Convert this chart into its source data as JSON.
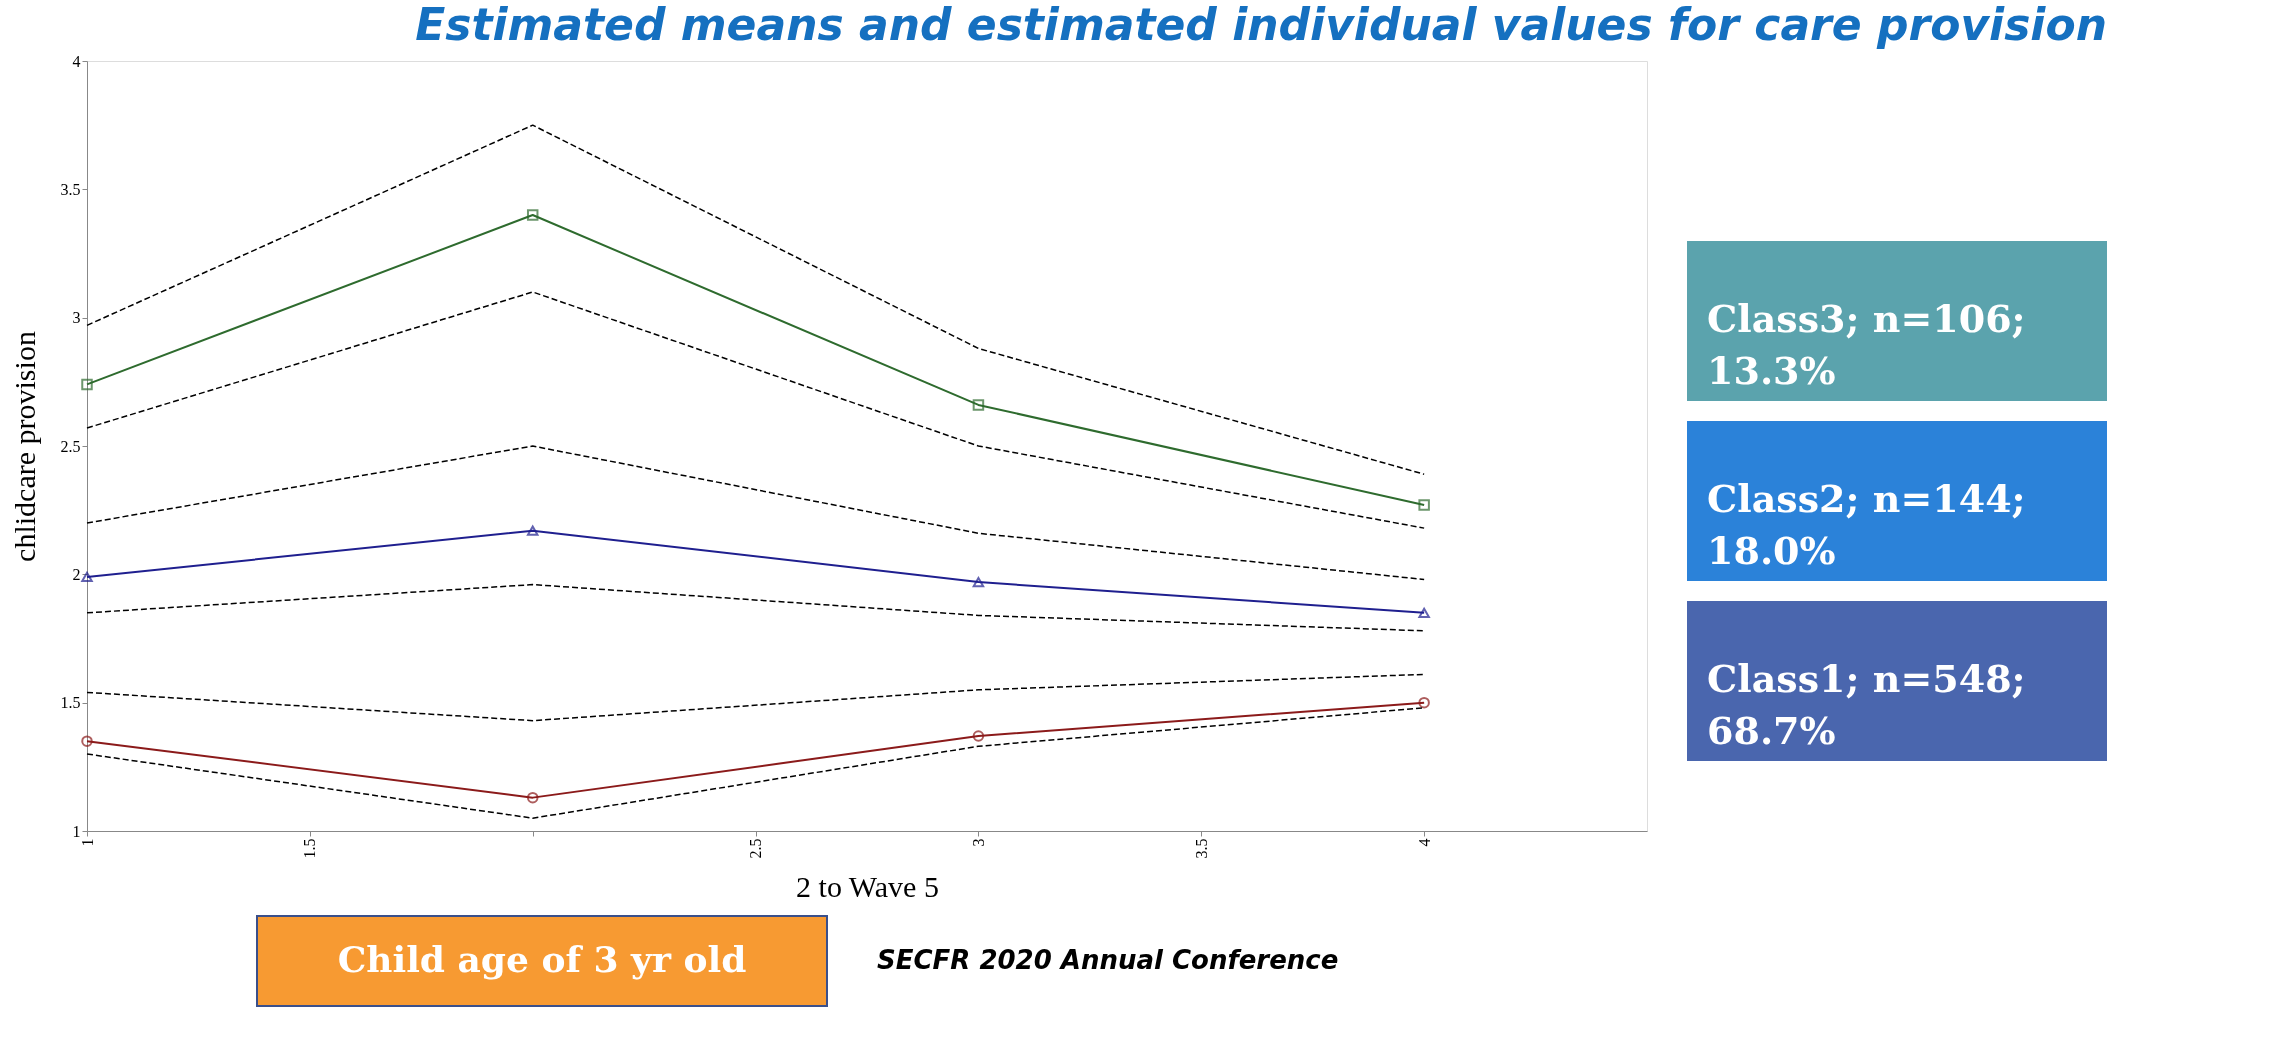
{
  "chart_data": {
    "type": "line",
    "title": "Estimated means and estimated individual values for care provision",
    "xlabel": "2 to Wave 5",
    "ylabel": "chlidcare provision",
    "xlim": [
      1,
      4.5
    ],
    "xticks": [
      1,
      1.5,
      {
        "value": 2,
        "label": null
      },
      2.5,
      3,
      3.5,
      4
    ],
    "ylim": [
      1,
      4
    ],
    "yticks": [
      1,
      1.5,
      2,
      2.5,
      3,
      3.5,
      4
    ],
    "x": [
      1,
      2,
      3,
      4
    ],
    "grid": false,
    "legend": false,
    "series": [
      {
        "color": "#2e6b2e",
        "marker": "square",
        "line_style": "solid",
        "values": [
          2.74,
          3.4,
          2.66,
          2.27
        ]
      },
      {
        "color": "#1f1f8f",
        "marker": "triangle",
        "line_style": "solid",
        "values": [
          1.99,
          2.17,
          1.97,
          1.85
        ]
      },
      {
        "color": "#8b1a1a",
        "marker": "circle",
        "line_style": "solid",
        "values": [
          1.35,
          1.13,
          1.37,
          1.5
        ]
      },
      {
        "color": "#000000",
        "marker": "none",
        "line_style": "dashed",
        "values": [
          2.97,
          3.75,
          2.88,
          2.39
        ]
      },
      {
        "color": "#000000",
        "marker": "none",
        "line_style": "dashed",
        "values": [
          2.57,
          3.1,
          2.5,
          2.18
        ]
      },
      {
        "color": "#000000",
        "marker": "none",
        "line_style": "dashed",
        "values": [
          2.2,
          2.5,
          2.16,
          1.98
        ]
      },
      {
        "color": "#000000",
        "marker": "none",
        "line_style": "dashed",
        "values": [
          1.85,
          1.96,
          1.84,
          1.78
        ]
      },
      {
        "color": "#000000",
        "marker": "none",
        "line_style": "dashed",
        "values": [
          1.54,
          1.43,
          1.55,
          1.61
        ]
      },
      {
        "color": "#000000",
        "marker": "none",
        "line_style": "dashed",
        "values": [
          1.3,
          1.05,
          1.33,
          1.48
        ]
      }
    ],
    "annotations": [
      "Class3; n=106; 13.3%",
      "Class2; n=144; 18.0%",
      "Class1; n=548; 68.7%",
      "Child age of 3 yr old",
      "SECFR 2020 Annual Conference"
    ]
  }
}
